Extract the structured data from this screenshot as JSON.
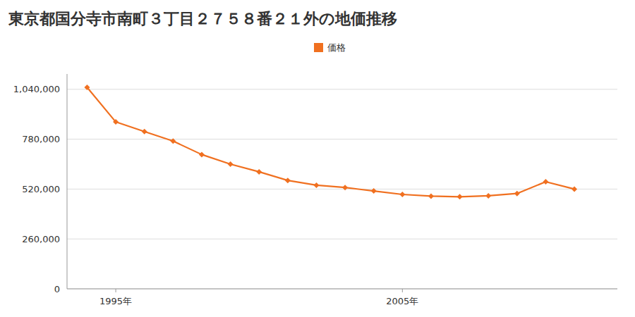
{
  "chart_data": {
    "type": "line",
    "title": "東京都国分寺市南町３丁目２７５８番２１外の地価推移",
    "x": [
      1994,
      1995,
      1996,
      1997,
      1998,
      1999,
      2000,
      2001,
      2002,
      2003,
      2004,
      2005,
      2006,
      2007,
      2008,
      2009,
      2010,
      2011
    ],
    "series": [
      {
        "name": "価格",
        "color": "#f07020",
        "marker": "diamond",
        "values": [
          1050000,
          870000,
          820000,
          770000,
          700000,
          650000,
          610000,
          565000,
          540000,
          528000,
          510000,
          492000,
          483000,
          480000,
          485000,
          497000,
          558000,
          520000
        ]
      }
    ],
    "xlim": [
      1993.3,
      2012.5
    ],
    "xticks": [
      {
        "value": 1995,
        "label": "1995年"
      },
      {
        "value": 2005,
        "label": "2005年"
      }
    ],
    "ylim": [
      0,
      1120000
    ],
    "yticks": [
      0,
      {
        "value": 260000,
        "label": "260,000"
      },
      {
        "value": 520000,
        "label": "520,000"
      },
      {
        "value": 780000,
        "label": "780,000"
      },
      {
        "value": 1040000,
        "label": "1,040,000"
      }
    ],
    "grid": true,
    "legend": "top"
  }
}
